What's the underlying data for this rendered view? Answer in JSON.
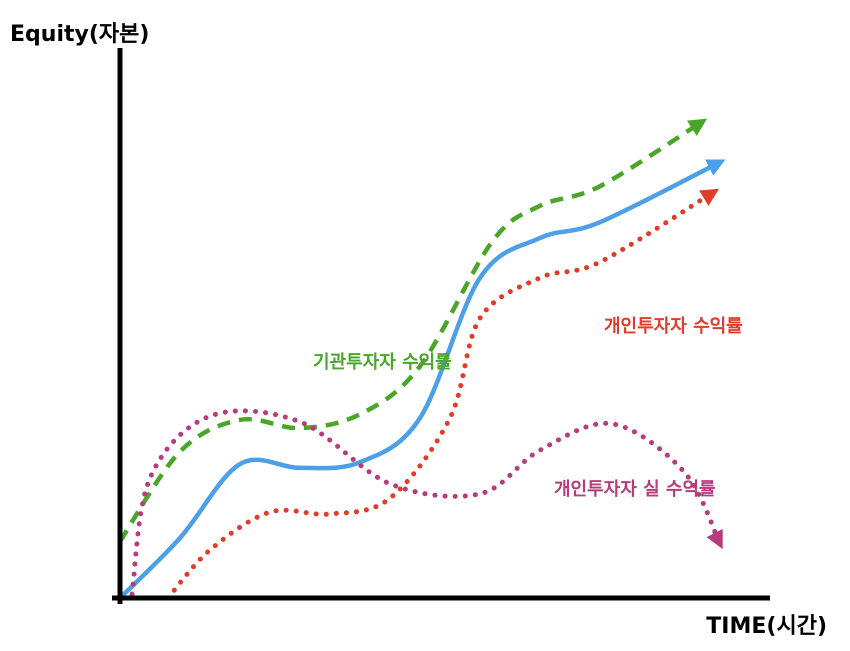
{
  "chart_data": {
    "type": "line",
    "title": "",
    "ylabel": "Equity(자본)",
    "xlabel": "TIME(시간)",
    "xlim": [
      0,
      100
    ],
    "ylim": [
      0,
      100
    ],
    "grid": false,
    "legend": "none",
    "series": [
      {
        "name": "기관투자자 수익률",
        "color": "#4aa628",
        "style": "dashed",
        "arrow": "end",
        "points": [
          [
            0,
            11.8
          ],
          [
            10,
            30.5
          ],
          [
            20,
            37.1
          ],
          [
            30,
            35.4
          ],
          [
            40,
            38.3
          ],
          [
            50,
            48.3
          ],
          [
            62,
            74.2
          ],
          [
            70,
            81.7
          ],
          [
            80,
            85.8
          ],
          [
            97,
            99.2
          ]
        ]
      },
      {
        "name": "",
        "color": "#4d9fe8",
        "style": "solid",
        "arrow": "end",
        "points": [
          [
            0,
            0
          ],
          [
            10,
            12.5
          ],
          [
            20,
            27.9
          ],
          [
            30,
            27.1
          ],
          [
            40,
            28.3
          ],
          [
            50,
            37.5
          ],
          [
            60,
            66.7
          ],
          [
            70,
            75
          ],
          [
            80,
            78.3
          ],
          [
            100,
            90.8
          ]
        ]
      },
      {
        "name": "개인투자자 수익률",
        "color": "#e03c2a",
        "style": "dotted",
        "arrow": "end",
        "points": [
          [
            8,
            0
          ],
          [
            15,
            10
          ],
          [
            25,
            17.9
          ],
          [
            35,
            17.5
          ],
          [
            45,
            20.8
          ],
          [
            55,
            37.5
          ],
          [
            60,
            58.3
          ],
          [
            70,
            66.7
          ],
          [
            80,
            70
          ],
          [
            99,
            84.6
          ]
        ]
      },
      {
        "name": "개인투자자 실 수익률",
        "color": "#b83b7c",
        "style": "dotted",
        "arrow": "end",
        "points": [
          [
            2,
            0.8
          ],
          [
            5,
            25
          ],
          [
            15,
            37.9
          ],
          [
            30,
            36.7
          ],
          [
            45,
            23.8
          ],
          [
            60,
            21.7
          ],
          [
            70,
            30.8
          ],
          [
            82,
            36.3
          ],
          [
            94,
            26.3
          ],
          [
            100,
            11.3
          ]
        ]
      }
    ],
    "labels": [
      {
        "text": "기관투자자 수익률",
        "series": 0
      },
      {
        "text": "개인투자자 수익률",
        "series": 2
      },
      {
        "text": "개인투자자 실 수익률",
        "series": 3
      }
    ]
  }
}
